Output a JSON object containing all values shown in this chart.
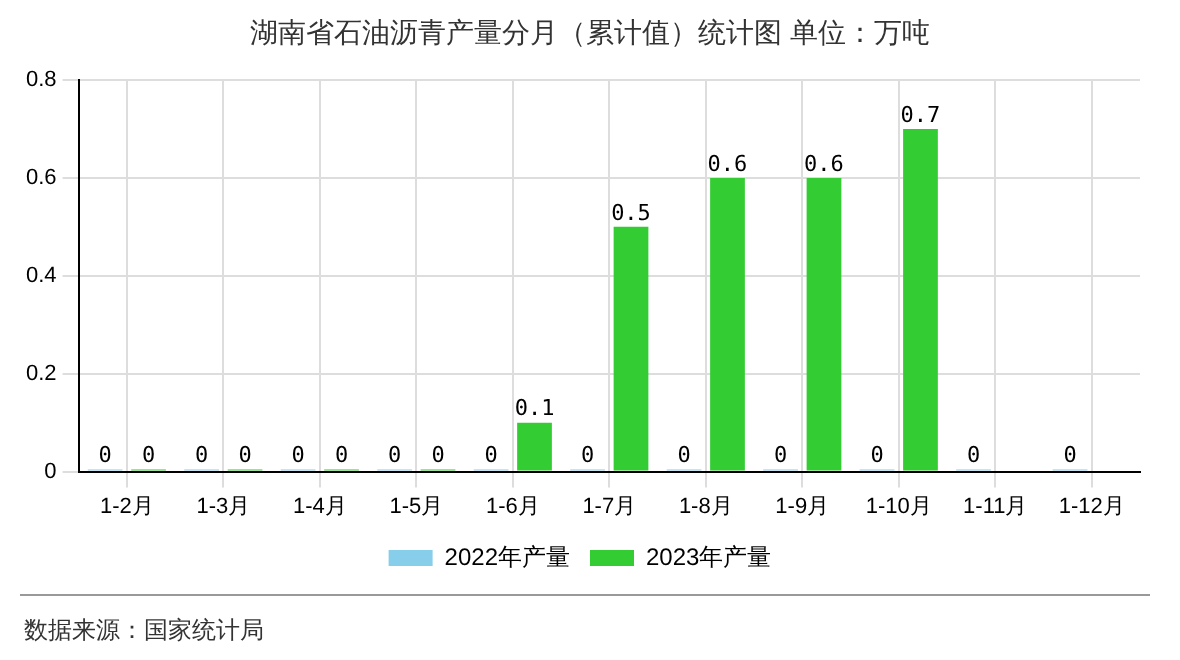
{
  "chart_data": {
    "type": "bar",
    "title": "湖南省石油沥青产量分月（累计值）统计图 单位：万吨",
    "categories": [
      "1-2月",
      "1-3月",
      "1-4月",
      "1-5月",
      "1-6月",
      "1-7月",
      "1-8月",
      "1-9月",
      "1-10月",
      "1-11月",
      "1-12月"
    ],
    "series": [
      {
        "name": "2022年产量",
        "color": "#87ceeb",
        "values": [
          0,
          0,
          0,
          0,
          0,
          0,
          0,
          0,
          0,
          0,
          0
        ]
      },
      {
        "name": "2023年产量",
        "color": "#33cc33",
        "values": [
          0,
          0,
          0,
          0,
          0.1,
          0.5,
          0.6,
          0.6,
          0.7,
          null,
          null
        ]
      }
    ],
    "ylim": [
      0,
      0.8
    ],
    "yticks": [
      0,
      0.2,
      0.4,
      0.6,
      0.8
    ],
    "grid": true,
    "legend": "bottom",
    "data_labels": true,
    "annotations": [
      "数据来源：国家统计局"
    ]
  }
}
